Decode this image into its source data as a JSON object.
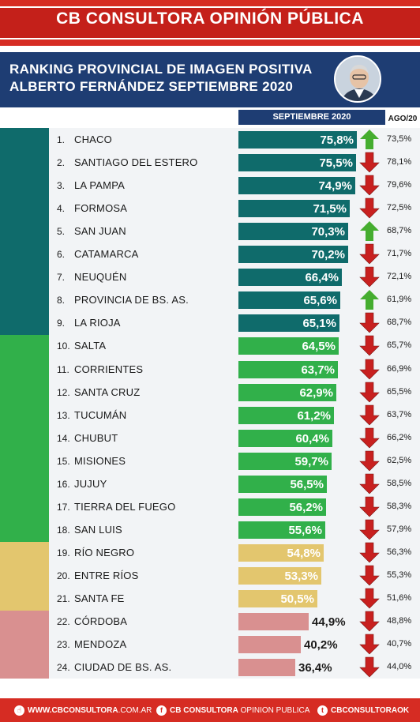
{
  "header": {
    "title": "CB CONSULTORA OPINIÓN PÚBLICA"
  },
  "title": {
    "line1": "RANKING PROVINCIAL DE IMAGEN POSITIVA",
    "line2": "ALBERTO FERNÁNDEZ SEPTIEMBRE 2020"
  },
  "avatar_icon": "portrait-photo",
  "columns": {
    "current": "SEPTIEMBRE 2020",
    "previous": "AGO/20"
  },
  "colors": {
    "header_red": "#d62c23",
    "title_navy": "#1e3d73",
    "group_teal": "#0f6b6b",
    "group_green": "#31b04a",
    "group_yellow": "#e3c66e",
    "group_pink": "#d99090",
    "arrow_up": "#45ad2f",
    "arrow_down": "#c8201f"
  },
  "chart_data": {
    "type": "bar",
    "title": "RANKING PROVINCIAL DE IMAGEN POSITIVA ALBERTO FERNÁNDEZ SEPTIEMBRE 2020",
    "xlabel": "",
    "ylabel": "",
    "xlim": [
      0,
      100
    ],
    "categories": [
      "CHACO",
      "SANTIAGO DEL ESTERO",
      "LA PAMPA",
      "FORMOSA",
      "SAN JUAN",
      "CATAMARCA",
      "NEUQUÉN",
      "PROVINCIA DE BS. AS.",
      "LA RIOJA",
      "SALTA",
      "CORRIENTES",
      "SANTA CRUZ",
      "TUCUMÁN",
      "CHUBUT",
      "MISIONES",
      "JUJUY",
      "TIERRA DEL FUEGO",
      "SAN LUIS",
      "RÍO NEGRO",
      "ENTRE RÍOS",
      "SANTA FE",
      "CÓRDOBA",
      "MENDOZA",
      "CIUDAD DE BS. AS."
    ],
    "series": [
      {
        "name": "SEPTIEMBRE 2020",
        "values": [
          75.8,
          75.5,
          74.9,
          71.5,
          70.3,
          70.2,
          66.4,
          65.6,
          65.1,
          64.5,
          63.7,
          62.9,
          61.2,
          60.4,
          59.7,
          56.5,
          56.2,
          55.6,
          54.8,
          53.3,
          50.5,
          44.9,
          40.2,
          36.4
        ]
      },
      {
        "name": "AGO/20",
        "values": [
          73.5,
          78.1,
          79.6,
          72.5,
          68.7,
          71.7,
          72.1,
          61.9,
          68.7,
          65.7,
          66.9,
          65.5,
          63.7,
          66.2,
          62.5,
          58.5,
          58.3,
          57.9,
          56.3,
          55.3,
          51.6,
          48.8,
          40.7,
          44.0
        ]
      }
    ],
    "rows": [
      {
        "rank": "1.",
        "name": "CHACO",
        "sep": "75,8%",
        "ago": "73,5%",
        "trend": "up",
        "group": "teal"
      },
      {
        "rank": "2.",
        "name": "SANTIAGO DEL ESTERO",
        "sep": "75,5%",
        "ago": "78,1%",
        "trend": "down",
        "group": "teal"
      },
      {
        "rank": "3.",
        "name": "LA PAMPA",
        "sep": "74,9%",
        "ago": "79,6%",
        "trend": "down",
        "group": "teal"
      },
      {
        "rank": "4.",
        "name": "FORMOSA",
        "sep": "71,5%",
        "ago": "72,5%",
        "trend": "down",
        "group": "teal"
      },
      {
        "rank": "5.",
        "name": "SAN JUAN",
        "sep": "70,3%",
        "ago": "68,7%",
        "trend": "up",
        "group": "teal"
      },
      {
        "rank": "6.",
        "name": "CATAMARCA",
        "sep": "70,2%",
        "ago": "71,7%",
        "trend": "down",
        "group": "teal"
      },
      {
        "rank": "7.",
        "name": "NEUQUÉN",
        "sep": "66,4%",
        "ago": "72,1%",
        "trend": "down",
        "group": "teal"
      },
      {
        "rank": "8.",
        "name": "PROVINCIA DE BS. AS.",
        "sep": "65,6%",
        "ago": "61,9%",
        "trend": "up",
        "group": "teal"
      },
      {
        "rank": "9.",
        "name": "LA RIOJA",
        "sep": "65,1%",
        "ago": "68,7%",
        "trend": "down",
        "group": "teal"
      },
      {
        "rank": "10.",
        "name": "SALTA",
        "sep": "64,5%",
        "ago": "65,7%",
        "trend": "down",
        "group": "green"
      },
      {
        "rank": "11.",
        "name": "CORRIENTES",
        "sep": "63,7%",
        "ago": "66,9%",
        "trend": "down",
        "group": "green"
      },
      {
        "rank": "12.",
        "name": "SANTA CRUZ",
        "sep": "62,9%",
        "ago": "65,5%",
        "trend": "down",
        "group": "green"
      },
      {
        "rank": "13.",
        "name": "TUCUMÁN",
        "sep": "61,2%",
        "ago": "63,7%",
        "trend": "down",
        "group": "green"
      },
      {
        "rank": "14.",
        "name": "CHUBUT",
        "sep": "60,4%",
        "ago": "66,2%",
        "trend": "down",
        "group": "green"
      },
      {
        "rank": "15.",
        "name": "MISIONES",
        "sep": "59,7%",
        "ago": "62,5%",
        "trend": "down",
        "group": "green"
      },
      {
        "rank": "16.",
        "name": "JUJUY",
        "sep": "56,5%",
        "ago": "58,5%",
        "trend": "down",
        "group": "green"
      },
      {
        "rank": "17.",
        "name": "TIERRA DEL FUEGO",
        "sep": "56,2%",
        "ago": "58,3%",
        "trend": "down",
        "group": "green"
      },
      {
        "rank": "18.",
        "name": "SAN LUIS",
        "sep": "55,6%",
        "ago": "57,9%",
        "trend": "down",
        "group": "green"
      },
      {
        "rank": "19.",
        "name": "RÍO NEGRO",
        "sep": "54,8%",
        "ago": "56,3%",
        "trend": "down",
        "group": "yellow"
      },
      {
        "rank": "20.",
        "name": "ENTRE RÍOS",
        "sep": "53,3%",
        "ago": "55,3%",
        "trend": "down",
        "group": "yellow"
      },
      {
        "rank": "21.",
        "name": "SANTA FE",
        "sep": "50,5%",
        "ago": "51,6%",
        "trend": "down",
        "group": "yellow"
      },
      {
        "rank": "22.",
        "name": "CÓRDOBA",
        "sep": "44,9%",
        "ago": "48,8%",
        "trend": "down",
        "group": "pink"
      },
      {
        "rank": "23.",
        "name": "MENDOZA",
        "sep": "40,2%",
        "ago": "40,7%",
        "trend": "down",
        "group": "pink"
      },
      {
        "rank": "24.",
        "name": "CIUDAD DE BS. AS.",
        "sep": "36,4%",
        "ago": "44,0%",
        "trend": "down",
        "group": "pink"
      }
    ]
  },
  "footer": {
    "web_icon": "pointer-icon",
    "web_bold": "WWW.CBCONSULTORA",
    "web_rest": ".COM.AR",
    "facebook_icon": "facebook-icon",
    "facebook_bold": "CB CONSULTORA",
    "facebook_rest": " OPINION PUBLICA",
    "twitter_icon": "twitter-icon",
    "twitter_bold": "CBCONSULTORAOK"
  }
}
